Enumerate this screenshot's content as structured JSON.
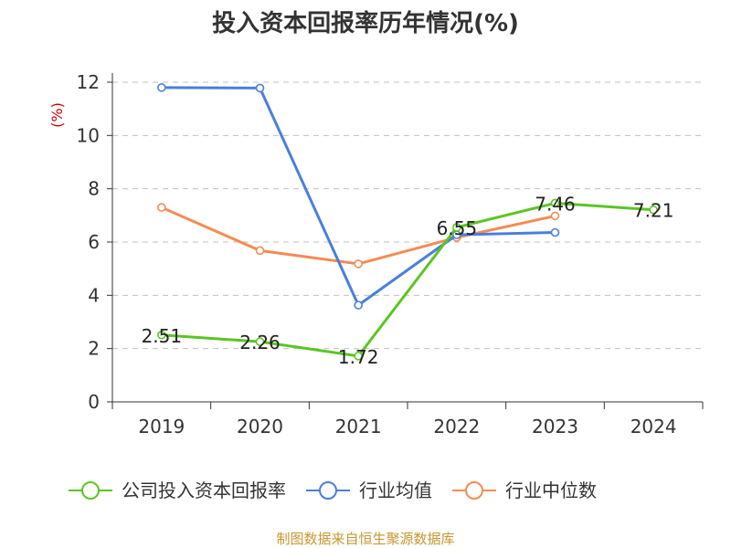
{
  "chart_data": {
    "type": "line",
    "title": "投入资本回报率历年情况(%)",
    "ylabel": "(%)",
    "ylim": [
      0,
      12
    ],
    "yticks": [
      0,
      2,
      4,
      6,
      8,
      10,
      12
    ],
    "grid": true,
    "categories": [
      "2019",
      "2020",
      "2021",
      "2022",
      "2023",
      "2024"
    ],
    "series": [
      {
        "name": "公司投入资本回报率",
        "color": "#5cc524",
        "values": [
          2.51,
          2.26,
          1.72,
          6.55,
          7.46,
          7.21
        ],
        "labels": [
          "2.51",
          "2.26",
          "1.72",
          "6.55",
          "7.46",
          "7.21"
        ]
      },
      {
        "name": "行业均值",
        "color": "#4a7fdc",
        "values": [
          11.8,
          11.78,
          3.63,
          6.27,
          6.36,
          null
        ]
      },
      {
        "name": "行业中位数",
        "color": "#f58b54",
        "values": [
          7.3,
          5.68,
          5.18,
          6.17,
          6.98,
          null
        ]
      }
    ],
    "legend_position": "bottom"
  },
  "footer": {
    "source_text": "制图数据来自恒生聚源数据库",
    "source_color": "#c8962e"
  },
  "colors": {
    "axis": "#333333",
    "grid": "#c0c0c0",
    "ylabel": "#cc0000"
  }
}
